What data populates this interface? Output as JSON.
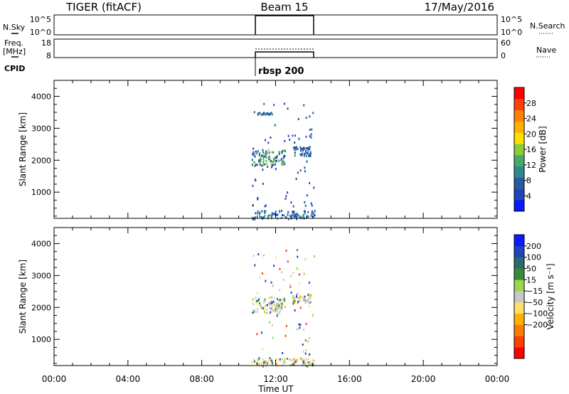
{
  "header": {
    "title": "TIGER (fitACF)",
    "beam": "Beam 15",
    "date": "17/May/2016"
  },
  "status_panels": {
    "nsky_label": "N.Sky",
    "nsky_ticks": [
      "10^5",
      "10^0"
    ],
    "nsearch_label": "N.Search",
    "freq_label_line1": "Freq.",
    "freq_label_line2": "[MHz]",
    "freq_ticks": [
      "18",
      "8"
    ],
    "nave_label": "Nave",
    "nave_ticks": [
      "60",
      "0"
    ],
    "cpid_label": "CPID",
    "cpid_value": "rbsp 200"
  },
  "colors": {
    "power_scale": [
      "#0a1aff",
      "#2244bb",
      "#2a5aa0",
      "#2e8a8a",
      "#4aa86a",
      "#8ccc3a",
      "#ffe000",
      "#ffb000",
      "#ff8000",
      "#ff4000",
      "#ff0000"
    ],
    "velocity_scale": [
      "#ff0000",
      "#ff4000",
      "#ff7a00",
      "#ffb000",
      "#ffe066",
      "#c8c8c8",
      "#9ad84a",
      "#3a8a3a",
      "#2e6a6a",
      "#2244bb",
      "#0a1aff"
    ]
  },
  "chart_data": [
    {
      "type": "heatmap",
      "panel": "power",
      "xlabel": "",
      "ylabel": "Slant Range [km]",
      "xlim": [
        "00:00",
        "24:00"
      ],
      "ylim": [
        180,
        4500
      ],
      "x_ticks": [
        "00:00",
        "04:00",
        "08:00",
        "12:00",
        "16:00",
        "20:00",
        "00:00"
      ],
      "y_ticks": [
        1000,
        2000,
        3000,
        4000
      ],
      "colorbar": {
        "label": "Power [dB]",
        "ticks": [
          4,
          8,
          12,
          16,
          20,
          24,
          28
        ],
        "range": [
          0,
          32
        ]
      },
      "data_window_utc": [
        10.7,
        14.1
      ],
      "echo_regions": [
        {
          "t_start": 10.7,
          "t_end": 12.5,
          "range_start": 1850,
          "range_end": 2350,
          "level": "high"
        },
        {
          "t_start": 12.9,
          "t_end": 13.9,
          "range_start": 2150,
          "range_end": 2450,
          "level": "medium"
        },
        {
          "t_start": 10.7,
          "t_end": 14.1,
          "range_start": 180,
          "range_end": 450,
          "level": "low"
        },
        {
          "t_start": 11.0,
          "t_end": 11.8,
          "range_start": 3450,
          "range_end": 3520,
          "level": "low"
        }
      ]
    },
    {
      "type": "heatmap",
      "panel": "velocity",
      "xlabel": "Time UT",
      "ylabel": "Slant Range [km]",
      "xlim": [
        "00:00",
        "24:00"
      ],
      "ylim": [
        180,
        4500
      ],
      "x_ticks": [
        "00:00",
        "04:00",
        "08:00",
        "12:00",
        "16:00",
        "20:00",
        "00:00"
      ],
      "y_ticks": [
        1000,
        2000,
        3000,
        4000
      ],
      "colorbar": {
        "label": "Velocity [m s⁻¹]",
        "ticks": [
          200,
          100,
          50,
          15,
          -15,
          -50,
          -100,
          -200
        ]
      },
      "data_window_utc": [
        10.7,
        14.1
      ],
      "echo_regions": [
        {
          "t_start": 10.7,
          "t_end": 12.5,
          "range_start": 1850,
          "range_end": 2350,
          "level": "near-zero"
        },
        {
          "t_start": 12.9,
          "t_end": 13.9,
          "range_start": 2150,
          "range_end": 2450,
          "level": "near-zero"
        },
        {
          "t_start": 10.7,
          "t_end": 14.1,
          "range_start": 180,
          "range_end": 450,
          "level": "near-zero"
        }
      ]
    }
  ]
}
